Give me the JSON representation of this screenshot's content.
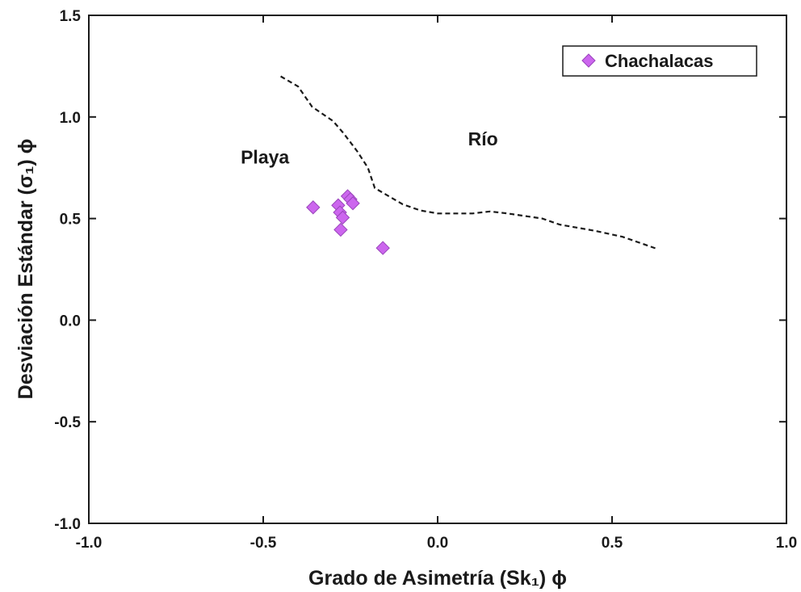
{
  "chart_data": {
    "type": "scatter",
    "xlabel": "Grado de Asimetría (Sk₁) ϕ",
    "ylabel": "Desviación Estándar (σ₁) ϕ",
    "xlim": [
      -1.0,
      1.0
    ],
    "ylim": [
      -1.0,
      1.5
    ],
    "x_ticks": [
      "-1.0",
      "-0.5",
      "0.0",
      "0.5",
      "1.0"
    ],
    "y_ticks": [
      "-1.0",
      "-0.5",
      "0.0",
      "0.5",
      "1.0",
      "1.5"
    ],
    "x_tick_values": [
      -1.0,
      -0.5,
      0.0,
      0.5,
      1.0
    ],
    "y_tick_values": [
      -1.0,
      -0.5,
      0.0,
      0.5,
      1.0,
      1.5
    ],
    "grid": false,
    "legend_position": "top-right",
    "series": [
      {
        "name": "Chachalacas",
        "color": "#cc66ee",
        "marker": "diamond",
        "points": [
          {
            "x": -0.357,
            "y": 0.555
          },
          {
            "x": -0.285,
            "y": 0.565
          },
          {
            "x": -0.28,
            "y": 0.53
          },
          {
            "x": -0.272,
            "y": 0.505
          },
          {
            "x": -0.258,
            "y": 0.61
          },
          {
            "x": -0.25,
            "y": 0.595
          },
          {
            "x": -0.243,
            "y": 0.575
          },
          {
            "x": -0.278,
            "y": 0.445
          },
          {
            "x": -0.157,
            "y": 0.355
          }
        ]
      }
    ],
    "boundary_line": {
      "style": "dashed",
      "color": "#1a1a1a",
      "points": [
        {
          "x": -0.45,
          "y": 1.2
        },
        {
          "x": -0.4,
          "y": 1.15
        },
        {
          "x": -0.36,
          "y": 1.05
        },
        {
          "x": -0.3,
          "y": 0.98
        },
        {
          "x": -0.27,
          "y": 0.92
        },
        {
          "x": -0.23,
          "y": 0.83
        },
        {
          "x": -0.2,
          "y": 0.75
        },
        {
          "x": -0.18,
          "y": 0.65
        },
        {
          "x": -0.15,
          "y": 0.62
        },
        {
          "x": -0.1,
          "y": 0.57
        },
        {
          "x": -0.05,
          "y": 0.54
        },
        {
          "x": 0.0,
          "y": 0.525
        },
        {
          "x": 0.1,
          "y": 0.525
        },
        {
          "x": 0.15,
          "y": 0.535
        },
        {
          "x": 0.2,
          "y": 0.525
        },
        {
          "x": 0.3,
          "y": 0.5
        },
        {
          "x": 0.35,
          "y": 0.47
        },
        {
          "x": 0.45,
          "y": 0.44
        },
        {
          "x": 0.53,
          "y": 0.41
        },
        {
          "x": 0.63,
          "y": 0.35
        }
      ]
    },
    "annotations": [
      {
        "text": "Playa",
        "x": -0.495,
        "y": 0.77
      },
      {
        "text": "Río",
        "x": 0.13,
        "y": 0.86
      }
    ]
  }
}
